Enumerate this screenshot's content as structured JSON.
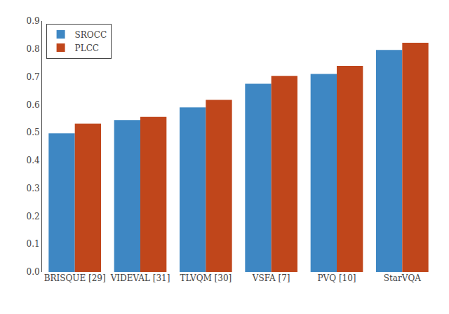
{
  "chart_data": {
    "type": "bar",
    "categories": [
      "BRISQUE [29]",
      "VIDEVAL [31]",
      "TLVQM [30]",
      "VSFA [7]",
      "PVQ [10]",
      "StarVQA"
    ],
    "series": [
      {
        "name": "SROCC",
        "color": "#3E87C3",
        "values": [
          0.497,
          0.545,
          0.59,
          0.675,
          0.71,
          0.796
        ]
      },
      {
        "name": "PLCC",
        "color": "#C0461B",
        "values": [
          0.532,
          0.556,
          0.617,
          0.703,
          0.739,
          0.822
        ]
      }
    ],
    "ylim": [
      0,
      0.9
    ],
    "yticks": [
      {
        "value": 0,
        "label": "0.0"
      },
      0.1,
      0.2,
      0.3,
      0.4,
      0.5,
      0.6,
      0.7,
      0.8,
      0.9
    ],
    "grid": false,
    "legend": "upper left"
  }
}
